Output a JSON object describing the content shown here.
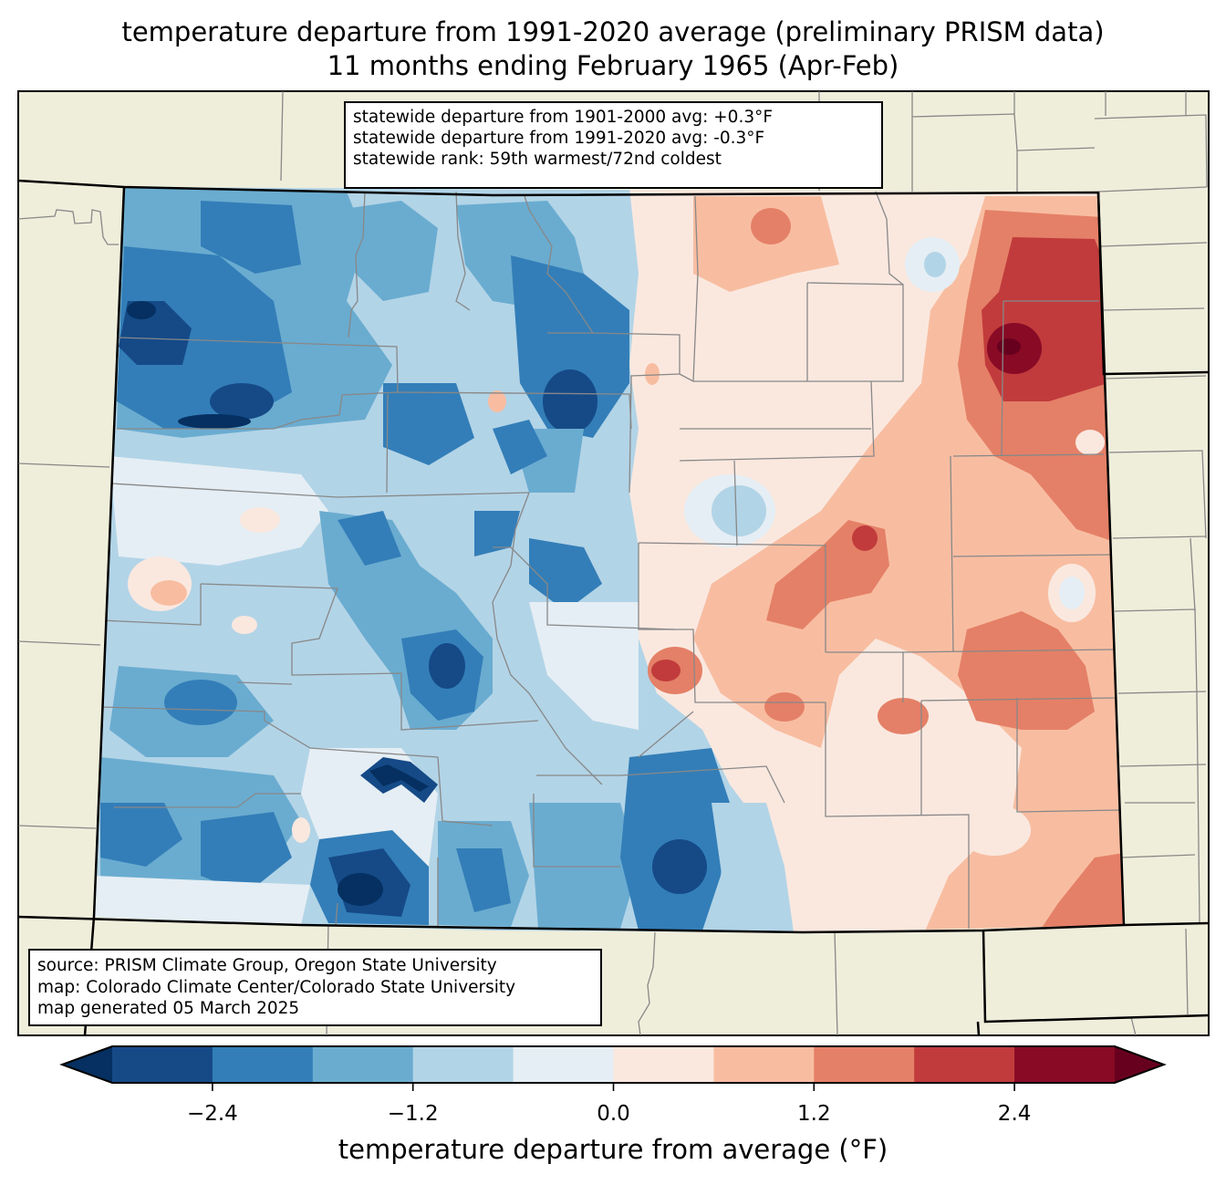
{
  "title": {
    "line1": "temperature departure from 1991-2020 average (preliminary PRISM data)",
    "line2": "11 months ending February 1965 (Apr-Feb)"
  },
  "stats_box": {
    "line1": "statewide departure from 1901-2000 avg: +0.3°F",
    "line2": "statewide departure from 1991-2020 avg: -0.3°F",
    "line3": "statewide rank: 59th warmest/72nd coldest"
  },
  "source_box": {
    "line1": "source: PRISM Climate Group, Oregon State University",
    "line2": "map: Colorado Climate Center/Colorado State University",
    "line3": "map generated 05 March 2025"
  },
  "colorbar": {
    "label": "temperature departure from average (°F)",
    "ticks": [
      "−2.4",
      "−1.2",
      "0.0",
      "1.2",
      "2.4"
    ],
    "tick_values": [
      -2.4,
      -1.2,
      0.0,
      1.2,
      2.4
    ],
    "range": [
      -3.0,
      3.0
    ],
    "boundaries": [
      -3.0,
      -2.4,
      -1.8,
      -1.2,
      -0.6,
      0.0,
      0.6,
      1.2,
      1.8,
      2.4,
      3.0
    ],
    "under_color": "#053061",
    "over_color": "#67001f",
    "colors": [
      "#154a87",
      "#337eb8",
      "#6aacd0",
      "#b2d4e7",
      "#e5eef4",
      "#fae8df",
      "#f8bda1",
      "#e48067",
      "#c13b3c",
      "#880a25"
    ]
  },
  "map_colors": {
    "land_outside": "#efeedb",
    "state_border": "#000000",
    "county_border": "#888888"
  }
}
